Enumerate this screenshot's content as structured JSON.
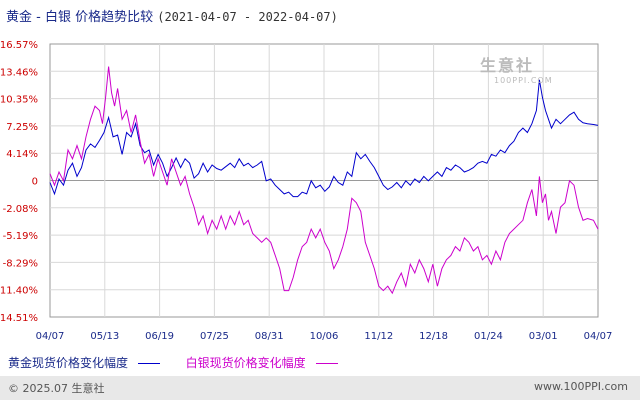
{
  "header": {
    "title": "黄金 - 白银 价格趋势比较",
    "date_range": "(2021-04-07 - 2022-04-07)"
  },
  "watermark": {
    "name": "生意社",
    "url": "100PPI.COM"
  },
  "legend": {
    "gold_label": "黄金现货价格变化幅度",
    "silver_label": "白银现货价格变化幅度"
  },
  "footer": {
    "copyright": "© 2025.07 生意社",
    "site": "www.100PPI.com"
  },
  "colors": {
    "gold": "#0000cc",
    "silver": "#cc00cc",
    "axis_red": "#cc0000",
    "grid": "#d0d0d0"
  },
  "chart_data": {
    "type": "line",
    "title": "黄金 - 白银 价格趋势比较",
    "xlabel": "",
    "ylabel": "",
    "x_ticks": [
      "04/07",
      "05/13",
      "06/19",
      "07/25",
      "08/31",
      "10/06",
      "11/12",
      "12/18",
      "01/24",
      "03/01",
      "04/07"
    ],
    "y_ticks": [
      "16.57%",
      "13.46%",
      "10.35%",
      "7.25%",
      "4.14%",
      "0",
      "-2.08%",
      "-5.19%",
      "-8.29%",
      "-11.40%",
      "-14.51%"
    ],
    "ylim": [
      -14.51,
      16.57
    ],
    "grid": true,
    "x_range_days": [
      0,
      365
    ],
    "series": [
      {
        "name": "黄金现货价格变化幅度",
        "color": "#0000cc",
        "points": [
          [
            0,
            0.8
          ],
          [
            3,
            -0.5
          ],
          [
            6,
            1.2
          ],
          [
            9,
            0.5
          ],
          [
            12,
            2.2
          ],
          [
            15,
            3.0
          ],
          [
            18,
            1.5
          ],
          [
            21,
            2.5
          ],
          [
            24,
            4.5
          ],
          [
            27,
            5.2
          ],
          [
            30,
            4.8
          ],
          [
            33,
            5.6
          ],
          [
            36,
            6.5
          ],
          [
            39,
            8.2
          ],
          [
            42,
            6.0
          ],
          [
            45,
            6.2
          ],
          [
            48,
            4.0
          ],
          [
            51,
            6.5
          ],
          [
            54,
            6.0
          ],
          [
            57,
            7.5
          ],
          [
            60,
            5.0
          ],
          [
            63,
            4.2
          ],
          [
            66,
            4.5
          ],
          [
            69,
            2.8
          ],
          [
            72,
            4.0
          ],
          [
            75,
            3.0
          ],
          [
            78,
            1.5
          ],
          [
            81,
            2.5
          ],
          [
            84,
            3.6
          ],
          [
            87,
            2.5
          ],
          [
            90,
            3.5
          ],
          [
            93,
            3.0
          ],
          [
            96,
            1.3
          ],
          [
            99,
            1.8
          ],
          [
            102,
            3.0
          ],
          [
            105,
            2.0
          ],
          [
            108,
            2.8
          ],
          [
            111,
            2.4
          ],
          [
            114,
            2.2
          ],
          [
            117,
            2.6
          ],
          [
            120,
            3.0
          ],
          [
            123,
            2.5
          ],
          [
            126,
            3.5
          ],
          [
            129,
            2.7
          ],
          [
            132,
            3.0
          ],
          [
            135,
            2.5
          ],
          [
            138,
            2.8
          ],
          [
            141,
            3.2
          ],
          [
            144,
            1.0
          ],
          [
            147,
            1.2
          ],
          [
            150,
            0.5
          ],
          [
            153,
            0.0
          ],
          [
            156,
            -0.5
          ],
          [
            159,
            -0.3
          ],
          [
            162,
            -0.8
          ],
          [
            165,
            -0.8
          ],
          [
            168,
            -0.3
          ],
          [
            171,
            -0.5
          ],
          [
            174,
            1.0
          ],
          [
            177,
            0.2
          ],
          [
            180,
            0.5
          ],
          [
            183,
            -0.2
          ],
          [
            186,
            0.3
          ],
          [
            189,
            1.5
          ],
          [
            192,
            0.8
          ],
          [
            195,
            0.5
          ],
          [
            198,
            2.0
          ],
          [
            201,
            1.5
          ],
          [
            204,
            4.2
          ],
          [
            207,
            3.5
          ],
          [
            210,
            4.0
          ],
          [
            213,
            3.2
          ],
          [
            216,
            2.5
          ],
          [
            219,
            1.5
          ],
          [
            222,
            0.5
          ],
          [
            225,
            0.0
          ],
          [
            228,
            0.3
          ],
          [
            231,
            0.8
          ],
          [
            234,
            0.2
          ],
          [
            237,
            1.0
          ],
          [
            240,
            0.5
          ],
          [
            243,
            1.2
          ],
          [
            246,
            0.8
          ],
          [
            249,
            1.5
          ],
          [
            252,
            1.0
          ],
          [
            255,
            1.5
          ],
          [
            258,
            2.0
          ],
          [
            261,
            1.5
          ],
          [
            264,
            2.5
          ],
          [
            267,
            2.2
          ],
          [
            270,
            2.8
          ],
          [
            273,
            2.5
          ],
          [
            276,
            2.0
          ],
          [
            279,
            2.2
          ],
          [
            282,
            2.5
          ],
          [
            285,
            3.0
          ],
          [
            288,
            3.2
          ],
          [
            291,
            3.0
          ],
          [
            294,
            4.0
          ],
          [
            297,
            3.8
          ],
          [
            300,
            4.5
          ],
          [
            303,
            4.2
          ],
          [
            306,
            5.0
          ],
          [
            309,
            5.5
          ],
          [
            312,
            6.5
          ],
          [
            315,
            7.0
          ],
          [
            318,
            6.5
          ],
          [
            321,
            7.5
          ],
          [
            324,
            9.0
          ],
          [
            326,
            12.5
          ],
          [
            328,
            10.5
          ],
          [
            330,
            9.0
          ],
          [
            332,
            8.0
          ],
          [
            334,
            7.0
          ],
          [
            337,
            8.0
          ],
          [
            340,
            7.5
          ],
          [
            343,
            8.0
          ],
          [
            346,
            8.5
          ],
          [
            349,
            8.8
          ],
          [
            352,
            8.0
          ],
          [
            355,
            7.6
          ],
          [
            358,
            7.5
          ],
          [
            362,
            7.4
          ],
          [
            365,
            7.3
          ]
        ]
      },
      {
        "name": "白银现货价格变化幅度",
        "color": "#cc00cc",
        "points": [
          [
            0,
            1.8
          ],
          [
            3,
            0.5
          ],
          [
            6,
            2.0
          ],
          [
            9,
            1.0
          ],
          [
            12,
            4.5
          ],
          [
            15,
            3.5
          ],
          [
            18,
            5.0
          ],
          [
            21,
            3.5
          ],
          [
            24,
            6.0
          ],
          [
            27,
            8.0
          ],
          [
            30,
            9.5
          ],
          [
            33,
            9.0
          ],
          [
            35,
            7.5
          ],
          [
            37,
            10.5
          ],
          [
            39,
            14.0
          ],
          [
            41,
            11.0
          ],
          [
            43,
            9.5
          ],
          [
            45,
            11.5
          ],
          [
            48,
            8.0
          ],
          [
            51,
            9.0
          ],
          [
            54,
            6.5
          ],
          [
            57,
            8.5
          ],
          [
            60,
            5.5
          ],
          [
            63,
            3.0
          ],
          [
            66,
            4.0
          ],
          [
            69,
            1.5
          ],
          [
            72,
            3.5
          ],
          [
            75,
            2.0
          ],
          [
            78,
            0.5
          ],
          [
            81,
            3.5
          ],
          [
            84,
            2.0
          ],
          [
            87,
            0.5
          ],
          [
            90,
            1.5
          ],
          [
            93,
            -0.5
          ],
          [
            96,
            -2.0
          ],
          [
            99,
            -4.0
          ],
          [
            102,
            -3.0
          ],
          [
            105,
            -5.0
          ],
          [
            108,
            -3.5
          ],
          [
            111,
            -4.5
          ],
          [
            114,
            -3.0
          ],
          [
            117,
            -4.5
          ],
          [
            120,
            -3.0
          ],
          [
            123,
            -4.0
          ],
          [
            126,
            -2.5
          ],
          [
            129,
            -4.0
          ],
          [
            132,
            -3.5
          ],
          [
            135,
            -5.0
          ],
          [
            138,
            -5.5
          ],
          [
            141,
            -6.0
          ],
          [
            144,
            -5.5
          ],
          [
            147,
            -6.0
          ],
          [
            150,
            -7.5
          ],
          [
            153,
            -9.0
          ],
          [
            156,
            -11.5
          ],
          [
            159,
            -11.5
          ],
          [
            162,
            -10.0
          ],
          [
            165,
            -8.0
          ],
          [
            168,
            -6.5
          ],
          [
            171,
            -6.0
          ],
          [
            174,
            -4.5
          ],
          [
            177,
            -5.5
          ],
          [
            180,
            -4.5
          ],
          [
            183,
            -6.0
          ],
          [
            186,
            -7.0
          ],
          [
            189,
            -9.0
          ],
          [
            192,
            -8.0
          ],
          [
            195,
            -6.5
          ],
          [
            198,
            -4.5
          ],
          [
            201,
            -1.0
          ],
          [
            204,
            -1.5
          ],
          [
            207,
            -2.5
          ],
          [
            210,
            -6.0
          ],
          [
            213,
            -7.5
          ],
          [
            216,
            -9.0
          ],
          [
            219,
            -11.0
          ],
          [
            222,
            -11.5
          ],
          [
            225,
            -11.0
          ],
          [
            228,
            -11.8
          ],
          [
            231,
            -10.5
          ],
          [
            234,
            -9.5
          ],
          [
            237,
            -11.0
          ],
          [
            240,
            -8.5
          ],
          [
            243,
            -9.5
          ],
          [
            246,
            -8.0
          ],
          [
            249,
            -9.0
          ],
          [
            252,
            -10.5
          ],
          [
            255,
            -8.5
          ],
          [
            258,
            -11.0
          ],
          [
            261,
            -9.0
          ],
          [
            264,
            -8.0
          ],
          [
            267,
            -7.5
          ],
          [
            270,
            -6.5
          ],
          [
            273,
            -7.0
          ],
          [
            276,
            -5.5
          ],
          [
            279,
            -6.0
          ],
          [
            282,
            -7.0
          ],
          [
            285,
            -6.5
          ],
          [
            288,
            -8.0
          ],
          [
            291,
            -7.5
          ],
          [
            294,
            -8.5
          ],
          [
            297,
            -7.0
          ],
          [
            300,
            -8.0
          ],
          [
            303,
            -6.0
          ],
          [
            306,
            -5.0
          ],
          [
            309,
            -4.5
          ],
          [
            312,
            -4.0
          ],
          [
            315,
            -3.5
          ],
          [
            318,
            -1.5
          ],
          [
            321,
            0.0
          ],
          [
            324,
            -3.0
          ],
          [
            326,
            1.5
          ],
          [
            328,
            -1.5
          ],
          [
            330,
            -0.5
          ],
          [
            332,
            -3.5
          ],
          [
            334,
            -2.5
          ],
          [
            337,
            -5.0
          ],
          [
            340,
            -2.0
          ],
          [
            343,
            -1.5
          ],
          [
            346,
            1.0
          ],
          [
            349,
            0.5
          ],
          [
            352,
            -2.0
          ],
          [
            355,
            -3.5
          ],
          [
            358,
            -3.3
          ],
          [
            362,
            -3.5
          ],
          [
            365,
            -4.5
          ]
        ]
      }
    ]
  }
}
